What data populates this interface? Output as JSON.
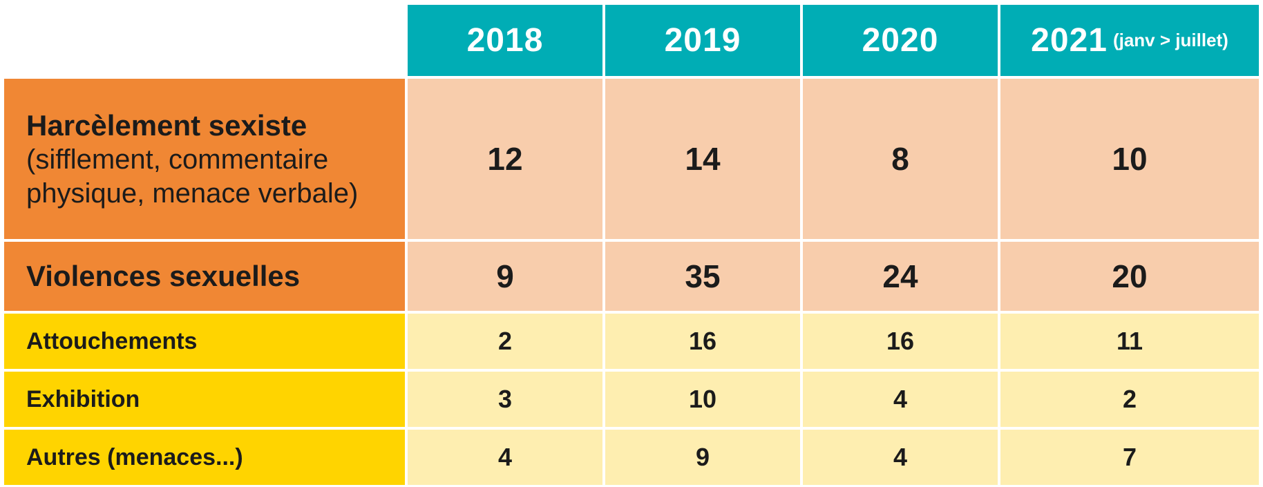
{
  "chart_data": {
    "type": "table",
    "columns": [
      {
        "year": "2018",
        "note": ""
      },
      {
        "year": "2019",
        "note": ""
      },
      {
        "year": "2020",
        "note": ""
      },
      {
        "year": "2021",
        "note": "(janv > juillet)"
      }
    ],
    "rows": [
      {
        "label": "Harcèlement sexiste",
        "sublabel_line1": "(sifflement, commentaire",
        "sublabel_line2": "physique, menace verbale)",
        "values": [
          "12",
          "14",
          "8",
          "10"
        ]
      },
      {
        "label": "Violences sexuelles",
        "values": [
          "9",
          "35",
          "24",
          "20"
        ]
      },
      {
        "label": "Attouchements",
        "values": [
          "2",
          "16",
          "16",
          "11"
        ]
      },
      {
        "label": "Exhibition",
        "values": [
          "3",
          "10",
          "4",
          "2"
        ]
      },
      {
        "label": "Autres (menaces...)",
        "values": [
          "4",
          "9",
          "4",
          "7"
        ]
      }
    ]
  },
  "colors": {
    "header": "#00adb5",
    "category_label": "#f08734",
    "category_values": "#f8cdac",
    "sub_label": "#ffd400",
    "sub_values": "#feeeb0"
  }
}
